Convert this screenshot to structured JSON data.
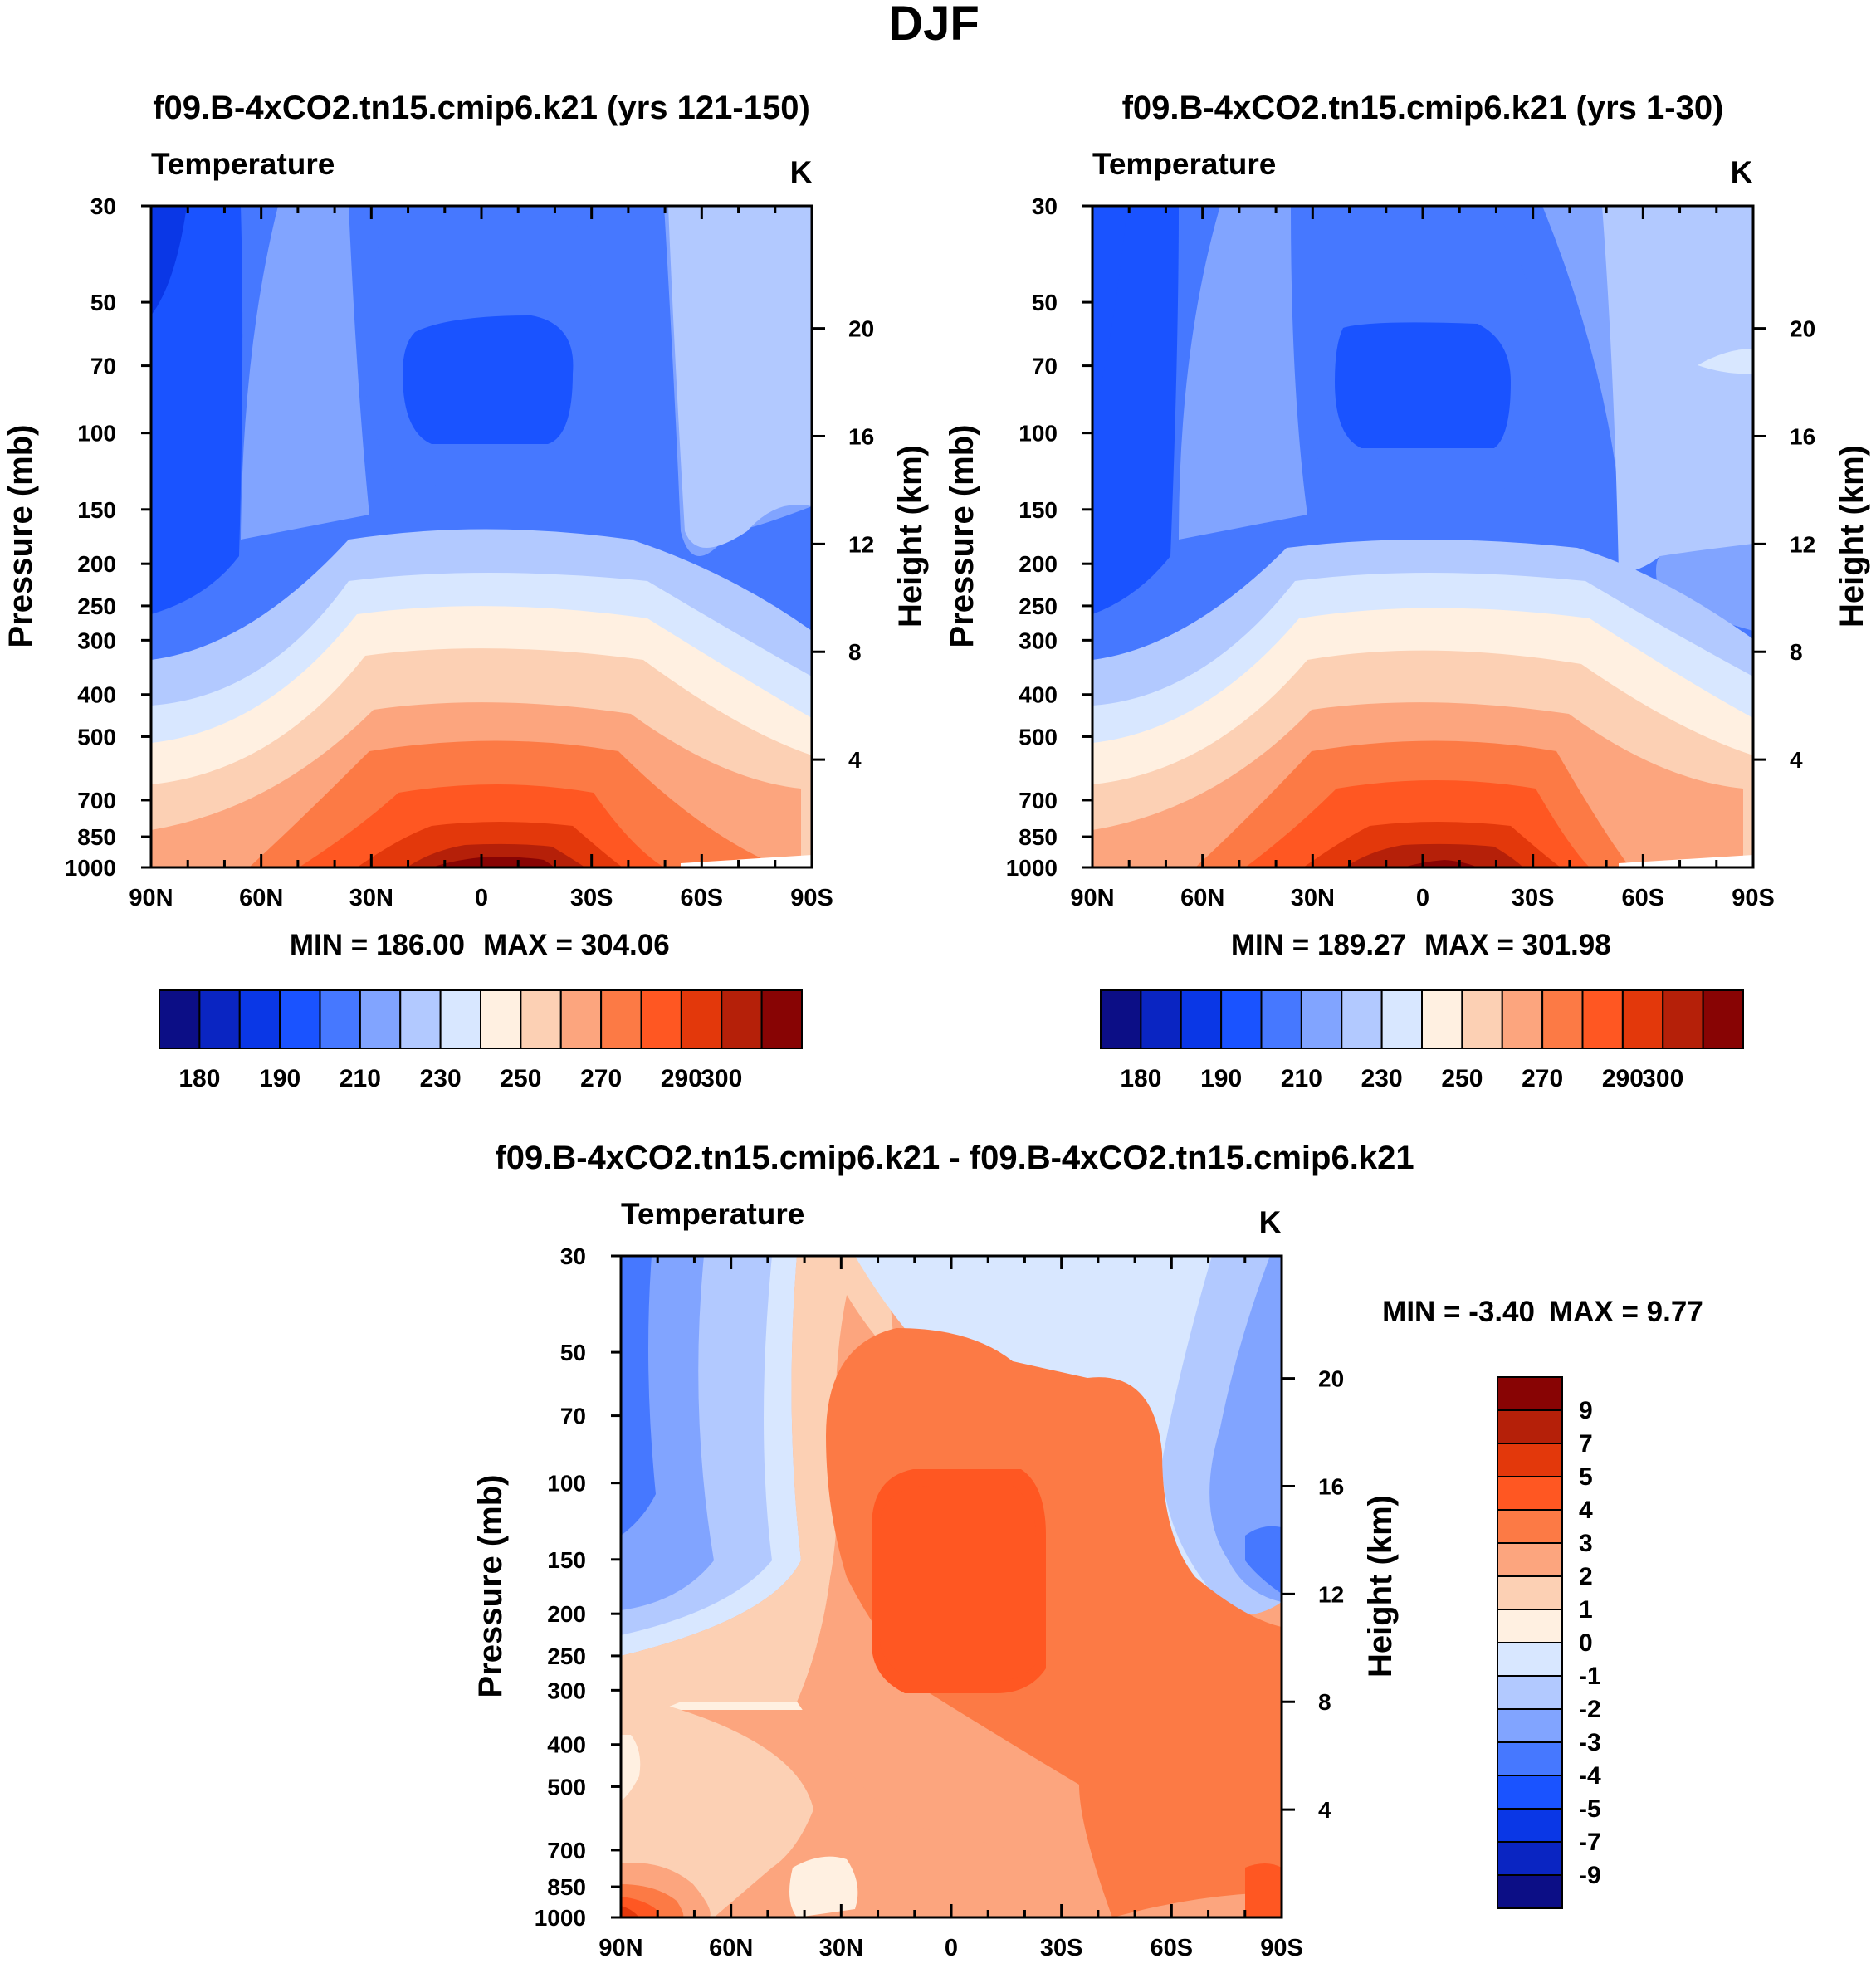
{
  "figure": {
    "title": "DJF"
  },
  "palettes": {
    "abs": [
      "#0c0e86",
      "#0a25c2",
      "#0a37e6",
      "#1a53ff",
      "#4678ff",
      "#81a4ff",
      "#b2c9ff",
      "#d8e7ff",
      "#fff0e1",
      "#fcd0b4",
      "#fca57e",
      "#fc7a45",
      "#ff5722",
      "#e3380b",
      "#b52009",
      "#880404"
    ],
    "diff": [
      "#0c0e86",
      "#0a25c2",
      "#0a37e6",
      "#1a53ff",
      "#4678ff",
      "#81a4ff",
      "#b2c9ff",
      "#d8e7ff",
      "#fff0e1",
      "#fcd0b4",
      "#fca57e",
      "#fc7a45",
      "#ff5722",
      "#e3380b",
      "#b52009",
      "#880404"
    ]
  },
  "chart_data": [
    {
      "id": "left",
      "type": "contour",
      "title": "f09.B-4xCO2.tn15.cmip6.k21 (yrs 121-150)",
      "left_string": "Temperature",
      "units": "K",
      "ylabel": "Pressure (mb)",
      "y2label": "Height (km)",
      "xticklabels": [
        "90N",
        "60N",
        "30N",
        "0",
        "30S",
        "60S",
        "90S"
      ],
      "xlim": [
        -90,
        90
      ],
      "pressure_levels": [
        30,
        50,
        70,
        100,
        150,
        200,
        250,
        300,
        400,
        500,
        700,
        850,
        1000
      ],
      "height_ticks": [
        20,
        16,
        12,
        8,
        4
      ],
      "min_text": "MIN = 186.00",
      "max_text": "MAX = 304.06",
      "colorbar_levels": [
        180,
        185,
        190,
        200,
        210,
        220,
        230,
        240,
        250,
        260,
        270,
        280,
        290,
        295,
        300
      ],
      "colorbar_labels": [
        "180",
        "190",
        "210",
        "230",
        "250",
        "270",
        "290",
        "300"
      ]
    },
    {
      "id": "right",
      "type": "contour",
      "title": "f09.B-4xCO2.tn15.cmip6.k21 (yrs 1-30)",
      "left_string": "Temperature",
      "units": "K",
      "ylabel": "Pressure (mb)",
      "y2label": "Height (km)",
      "xticklabels": [
        "90N",
        "60N",
        "30N",
        "0",
        "30S",
        "60S",
        "90S"
      ],
      "xlim": [
        -90,
        90
      ],
      "pressure_levels": [
        30,
        50,
        70,
        100,
        150,
        200,
        250,
        300,
        400,
        500,
        700,
        850,
        1000
      ],
      "height_ticks": [
        20,
        16,
        12,
        8,
        4
      ],
      "min_text": "MIN = 189.27",
      "max_text": "MAX = 301.98",
      "colorbar_levels": [
        180,
        185,
        190,
        200,
        210,
        220,
        230,
        240,
        250,
        260,
        270,
        280,
        290,
        295,
        300
      ],
      "colorbar_labels": [
        "180",
        "190",
        "210",
        "230",
        "250",
        "270",
        "290",
        "300"
      ]
    },
    {
      "id": "diff",
      "type": "contour",
      "title": "f09.B-4xCO2.tn15.cmip6.k21 - f09.B-4xCO2.tn15.cmip6.k21",
      "left_string": "Temperature",
      "units": "K",
      "ylabel": "Pressure (mb)",
      "y2label": "Height (km)",
      "xticklabels": [
        "90N",
        "60N",
        "30N",
        "0",
        "30S",
        "60S",
        "90S"
      ],
      "xlim": [
        -90,
        90
      ],
      "pressure_levels": [
        30,
        50,
        70,
        100,
        150,
        200,
        250,
        300,
        400,
        500,
        700,
        850,
        1000
      ],
      "height_ticks": [
        20,
        16,
        12,
        8,
        4
      ],
      "min_text": "MIN =  -3.40",
      "max_text": "MAX =   9.77",
      "colorbar_levels": [
        -9,
        -7,
        -5,
        -4,
        -3,
        -2,
        -1,
        0,
        1,
        2,
        3,
        4,
        5,
        7,
        9
      ],
      "colorbar_labels": [
        "9",
        "7",
        "5",
        "4",
        "3",
        "2",
        "1",
        "0",
        "-1",
        "-2",
        "-3",
        "-4",
        "-5",
        "-7",
        "-9"
      ]
    }
  ]
}
